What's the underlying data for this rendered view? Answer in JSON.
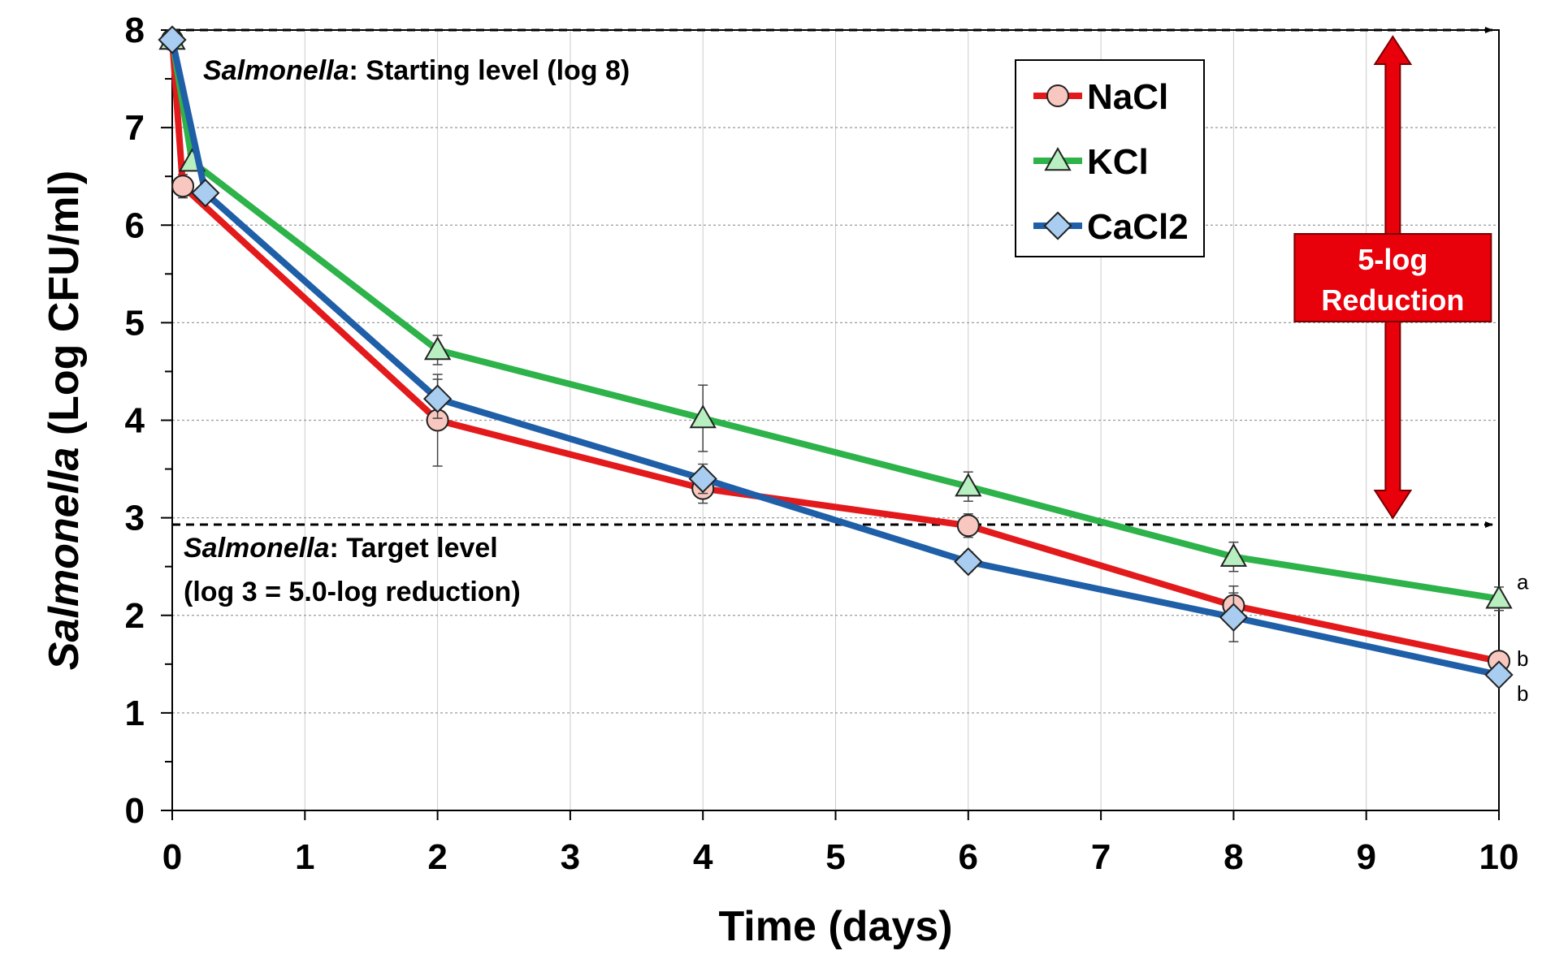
{
  "chart_data": {
    "type": "line",
    "xlabel": "Time (days)",
    "ylabel_italic": "Salmonella",
    "ylabel_rest": " (Log CFU/ml)",
    "xlim": [
      0,
      10
    ],
    "ylim": [
      0,
      8
    ],
    "x_ticks": [
      "0",
      "1",
      "2",
      "3",
      "4",
      "5",
      "6",
      "7",
      "8",
      "9",
      "10"
    ],
    "y_ticks": [
      "0",
      "1",
      "2",
      "3",
      "4",
      "5",
      "6",
      "7",
      "8"
    ],
    "grid": true,
    "legend_position": "top-right",
    "series": [
      {
        "name": "NaCl",
        "color": "#e31a1c",
        "marker": "circle",
        "marker_fill": "#f8c8c0",
        "x": [
          0,
          0.08,
          2,
          4,
          6,
          8,
          10
        ],
        "y": [
          7.9,
          6.4,
          4.0,
          3.3,
          2.92,
          2.1,
          1.53
        ],
        "error": [
          0,
          0.12,
          0.47,
          0.15,
          0.12,
          0.2,
          0.06
        ],
        "significance": "b"
      },
      {
        "name": "KCl",
        "color": "#2db34a",
        "marker": "triangle",
        "marker_fill": "#b8efc0",
        "x": [
          0,
          0.15,
          2,
          4,
          6,
          8,
          10
        ],
        "y": [
          7.9,
          6.65,
          4.72,
          4.02,
          3.32,
          2.6,
          2.17
        ],
        "error": [
          0,
          0.08,
          0.15,
          0.34,
          0.15,
          0.15,
          0.12
        ],
        "significance": "a"
      },
      {
        "name": "CaCl2",
        "color": "#1f5fa8",
        "marker": "diamond",
        "marker_fill": "#a8cdf0",
        "x": [
          0,
          0.25,
          2,
          4,
          6,
          8,
          10
        ],
        "y": [
          7.9,
          6.33,
          4.22,
          3.4,
          2.55,
          1.98,
          1.39
        ],
        "error": [
          0,
          0.05,
          0.2,
          0.15,
          0.1,
          0.25,
          0.08
        ],
        "significance": "b"
      }
    ],
    "annotations": {
      "start_italic": "Salmonella",
      "start_rest": ": Starting level (log 8)",
      "start_level": 8,
      "target_italic": "Salmonella",
      "target_rest": ": Target level",
      "target_line2": "(log 3 = 5.0-log reduction)",
      "target_level": 2.93,
      "reduction_line1": "5-log",
      "reduction_line2": "Reduction",
      "reduction_x": 9.2,
      "reduction_color": "#e8000b"
    }
  }
}
